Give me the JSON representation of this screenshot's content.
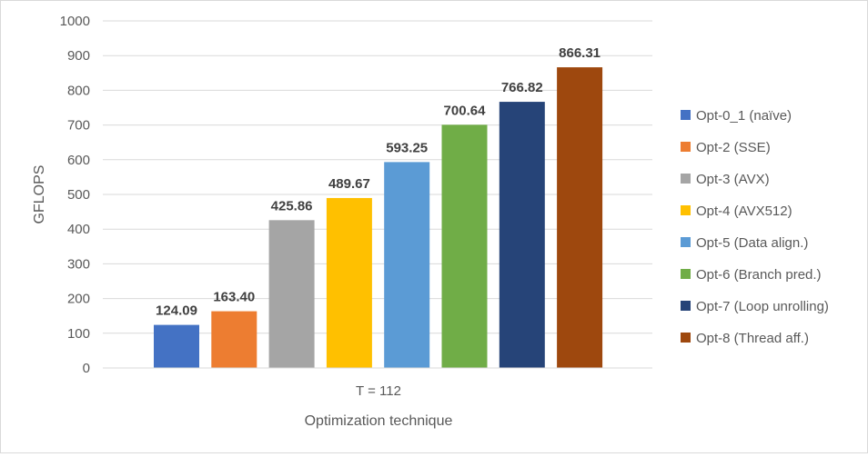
{
  "chart_data": {
    "type": "bar",
    "title": "",
    "xlabel": "Optimization technique",
    "ylabel": "GFLOPS",
    "categories": [
      "T = 112"
    ],
    "ylim": [
      0,
      1000
    ],
    "yticks": [
      0,
      100,
      200,
      300,
      400,
      500,
      600,
      700,
      800,
      900,
      1000
    ],
    "grid": true,
    "legend_position": "right",
    "series": [
      {
        "name": "Opt-0_1 (naïve)",
        "values": [
          124.09
        ],
        "label": "124.09",
        "color": "#4472c4"
      },
      {
        "name": "Opt-2 (SSE)",
        "values": [
          163.4
        ],
        "label": "163.40",
        "color": "#ed7d31"
      },
      {
        "name": "Opt-3 (AVX)",
        "values": [
          425.86
        ],
        "label": "425.86",
        "color": "#a5a5a5"
      },
      {
        "name": "Opt-4 (AVX512)",
        "values": [
          489.67
        ],
        "label": "489.67",
        "color": "#ffc000"
      },
      {
        "name": "Opt-5 (Data align.)",
        "values": [
          593.25
        ],
        "label": "593.25",
        "color": "#5b9bd5"
      },
      {
        "name": "Opt-6 (Branch pred.)",
        "values": [
          700.64
        ],
        "label": "700.64",
        "color": "#70ad47"
      },
      {
        "name": "Opt-7 (Loop unrolling)",
        "values": [
          766.82
        ],
        "label": "766.82",
        "color": "#264478"
      },
      {
        "name": "Opt-8 (Thread aff.)",
        "values": [
          866.31
        ],
        "label": "866.31",
        "color": "#9e480e"
      }
    ]
  }
}
